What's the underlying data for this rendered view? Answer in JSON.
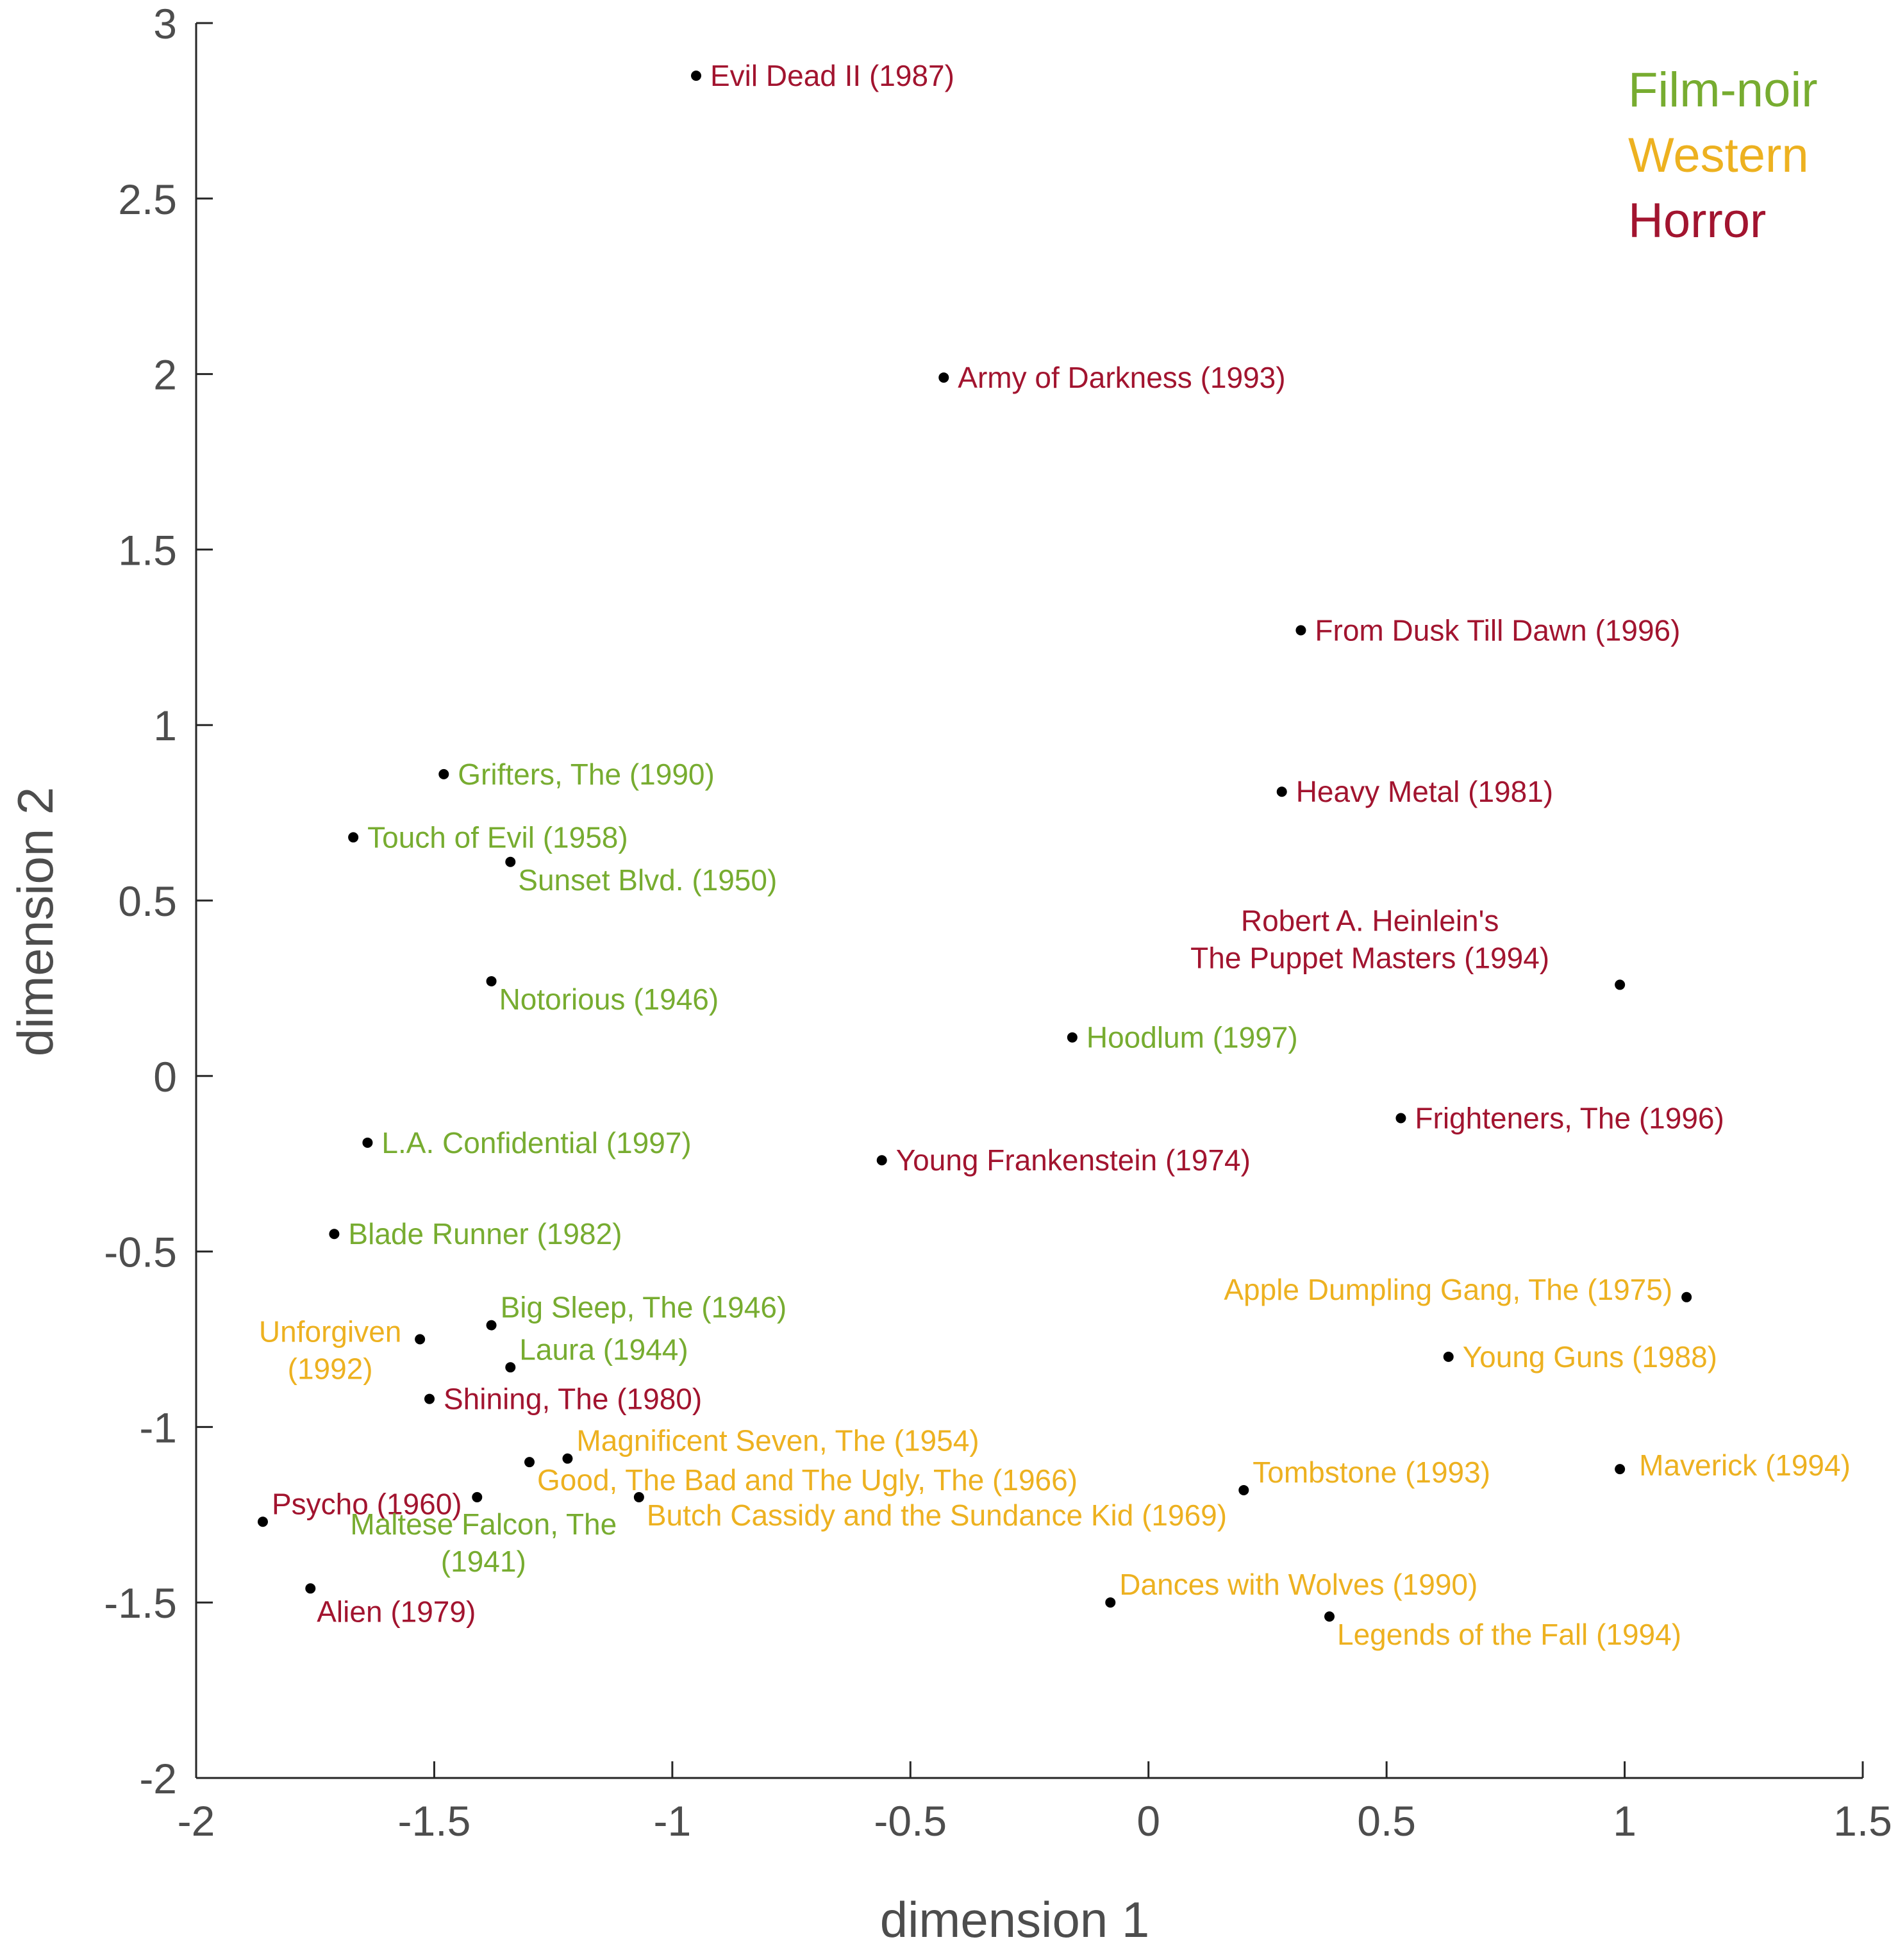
{
  "chart_data": {
    "type": "scatter",
    "xlabel": "dimension 1",
    "ylabel": "dimension 2",
    "xlim": [
      -2,
      1.5
    ],
    "ylim": [
      -2,
      3
    ],
    "xticks": [
      "-2",
      "-1.5",
      "-1",
      "-0.5",
      "0",
      "0.5",
      "1",
      "1.5"
    ],
    "yticks": [
      "-2",
      "-1.5",
      "-1",
      "-0.5",
      "0",
      "0.5",
      "1",
      "1.5",
      "2",
      "2.5",
      "3"
    ],
    "grid": false,
    "legend_position": "top-right",
    "marker_color": "#000000",
    "genre_colors": {
      "Film-noir": "#77ac30",
      "Western": "#edb120",
      "Horror": "#a2142f"
    },
    "legend": [
      {
        "name": "Film-noir",
        "color": "#77ac30"
      },
      {
        "name": "Western",
        "color": "#edb120"
      },
      {
        "name": "Horror",
        "color": "#a2142f"
      }
    ],
    "points": [
      {
        "label": "Evil Dead II (1987)",
        "genre": "Horror",
        "x": -0.95,
        "y": 2.85,
        "anchor": "right"
      },
      {
        "label": "Army of Darkness (1993)",
        "genre": "Horror",
        "x": -0.43,
        "y": 1.99,
        "anchor": "right"
      },
      {
        "label": "From Dusk Till Dawn (1996)",
        "genre": "Horror",
        "x": 0.32,
        "y": 1.27,
        "anchor": "right"
      },
      {
        "label": "Heavy Metal (1981)",
        "genre": "Horror",
        "x": 0.28,
        "y": 0.81,
        "anchor": "right"
      },
      {
        "label": [
          "Robert A. Heinlein's",
          "The Puppet Masters (1994)"
        ],
        "genre": "Horror",
        "x": 0.99,
        "y": 0.26,
        "anchor": "above-left"
      },
      {
        "label": "Frighteners, The (1996)",
        "genre": "Horror",
        "x": 0.53,
        "y": -0.12,
        "anchor": "right"
      },
      {
        "label": "Young Frankenstein (1974)",
        "genre": "Horror",
        "x": -0.56,
        "y": -0.24,
        "anchor": "right"
      },
      {
        "label": "Shining, The (1980)",
        "genre": "Horror",
        "x": -1.51,
        "y": -0.92,
        "anchor": "right"
      },
      {
        "label": "Psycho (1960)",
        "genre": "Horror",
        "x": -1.86,
        "y": -1.27,
        "anchor": "above-right"
      },
      {
        "label": "Alien (1979)",
        "genre": "Horror",
        "x": -1.76,
        "y": -1.46,
        "anchor": "below"
      },
      {
        "label": "Grifters, The (1990)",
        "genre": "Film-noir",
        "x": -1.48,
        "y": 0.86,
        "anchor": "right"
      },
      {
        "label": "Touch of Evil (1958)",
        "genre": "Film-noir",
        "x": -1.67,
        "y": 0.68,
        "anchor": "right"
      },
      {
        "label": "Sunset Blvd. (1950)",
        "genre": "Film-noir",
        "x": -1.34,
        "y": 0.61,
        "anchor": "below-right"
      },
      {
        "label": "Notorious (1946)",
        "genre": "Film-noir",
        "x": -1.38,
        "y": 0.27,
        "anchor": "below-right"
      },
      {
        "label": "Hoodlum (1997)",
        "genre": "Film-noir",
        "x": -0.16,
        "y": 0.11,
        "anchor": "right"
      },
      {
        "label": "L.A. Confidential (1997)",
        "genre": "Film-noir",
        "x": -1.64,
        "y": -0.19,
        "anchor": "right"
      },
      {
        "label": "Blade Runner (1982)",
        "genre": "Film-noir",
        "x": -1.71,
        "y": -0.45,
        "anchor": "right"
      },
      {
        "label": "Big Sleep, The (1946)",
        "genre": "Film-noir",
        "x": -1.38,
        "y": -0.71,
        "anchor": "above-right"
      },
      {
        "label": "Laura (1944)",
        "genre": "Film-noir",
        "x": -1.34,
        "y": -0.83,
        "anchor": "above-right"
      },
      {
        "label": [
          "Maltese Falcon, The",
          "(1941)"
        ],
        "genre": "Film-noir",
        "x": -1.41,
        "y": -1.2,
        "anchor": "below"
      },
      {
        "label": [
          "Unforgiven",
          "(1992)"
        ],
        "genre": "Western",
        "x": -1.53,
        "y": -0.75,
        "anchor": "left"
      },
      {
        "label": "Apple Dumpling Gang, The (1975)",
        "genre": "Western",
        "x": 1.13,
        "y": -0.63,
        "anchor": "left"
      },
      {
        "label": "Young Guns (1988)",
        "genre": "Western",
        "x": 0.63,
        "y": -0.8,
        "anchor": "right"
      },
      {
        "label": "Magnificent Seven, The (1954)",
        "genre": "Western",
        "x": -1.22,
        "y": -1.09,
        "anchor": "above-right"
      },
      {
        "label": "Good, The Bad and The Ugly, The (1966)",
        "genre": "Western",
        "x": -1.3,
        "y": -1.1,
        "anchor": "below-right"
      },
      {
        "label": "Butch Cassidy and the Sundance Kid (1969)",
        "genre": "Western",
        "x": -1.07,
        "y": -1.2,
        "anchor": "below-right"
      },
      {
        "label": "Tombstone (1993)",
        "genre": "Western",
        "x": 0.2,
        "y": -1.18,
        "anchor": "above-right"
      },
      {
        "label": "Maverick (1994)",
        "genre": "Western",
        "x": 0.99,
        "y": -1.12,
        "anchor": "right-wide"
      },
      {
        "label": "Dances with Wolves (1990)",
        "genre": "Western",
        "x": -0.08,
        "y": -1.5,
        "anchor": "above-right"
      },
      {
        "label": "Legends of the Fall (1994)",
        "genre": "Western",
        "x": 0.38,
        "y": -1.54,
        "anchor": "below-right"
      }
    ]
  }
}
